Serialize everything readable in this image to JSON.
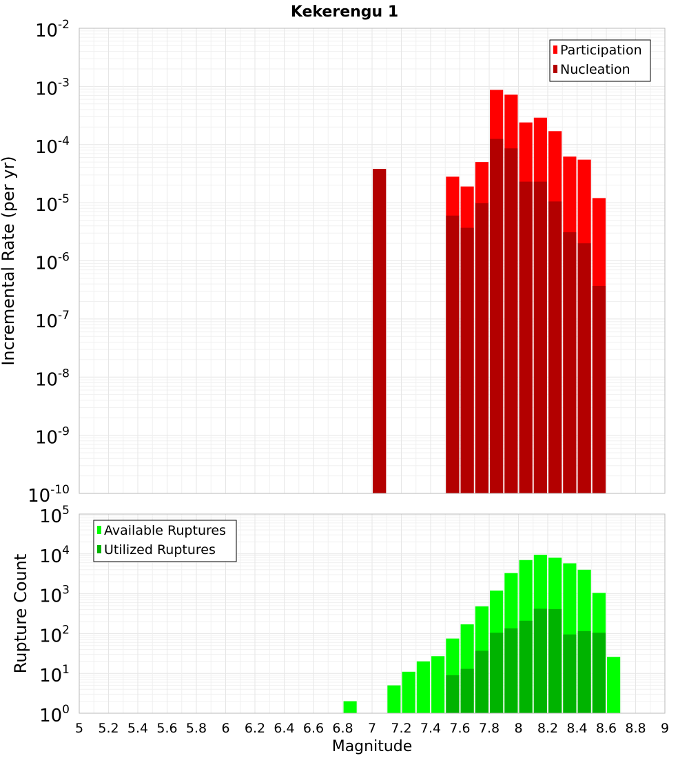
{
  "chart_data": [
    {
      "type": "bar",
      "title": "Kekerengu 1",
      "xlabel": "",
      "ylabel": "Incremental Rate (per yr)",
      "yscale": "log",
      "ylim_exp": [
        -10,
        -2
      ],
      "xlim": [
        5,
        9
      ],
      "x_tick_labels": [],
      "legend_position": "top-right",
      "grid": true,
      "bar_width": 0.09,
      "series": [
        {
          "name": "Participation",
          "color": "#ff0000",
          "x": [
            7.05,
            7.55,
            7.65,
            7.75,
            7.85,
            7.95,
            8.05,
            8.15,
            8.25,
            8.35,
            8.45,
            8.55
          ],
          "values": [
            3.8e-05,
            2.8e-05,
            1.9e-05,
            5e-05,
            0.00087,
            0.00072,
            0.00024,
            0.00029,
            0.00017,
            6.2e-05,
            5.5e-05,
            1.2e-05
          ]
        },
        {
          "name": "Nucleation",
          "color": "#b30000",
          "x": [
            7.05,
            7.55,
            7.65,
            7.75,
            7.85,
            7.95,
            8.05,
            8.15,
            8.25,
            8.35,
            8.45,
            8.55
          ],
          "values": [
            3.8e-05,
            6e-06,
            3.7e-06,
            9.8e-06,
            0.000125,
            8.6e-05,
            2.3e-05,
            2.3e-05,
            1.05e-05,
            3.1e-06,
            2e-06,
            3.7e-07
          ]
        }
      ]
    },
    {
      "type": "bar",
      "title": "",
      "xlabel": "Magnitude",
      "ylabel": "Rupture Count",
      "yscale": "log",
      "ylim_exp": [
        0,
        5
      ],
      "xlim": [
        5,
        9
      ],
      "x_tick_labels": [
        "5",
        "5.2",
        "5.4",
        "5.6",
        "5.8",
        "6",
        "6.2",
        "6.4",
        "6.6",
        "6.8",
        "7",
        "7.2",
        "7.4",
        "7.6",
        "7.8",
        "8",
        "8.2",
        "8.4",
        "8.6",
        "8.8",
        "9"
      ],
      "legend_position": "top-left",
      "grid": true,
      "bar_width": 0.09,
      "series": [
        {
          "name": "Available Ruptures",
          "color": "#00ff00",
          "x": [
            6.85,
            7.05,
            7.15,
            7.25,
            7.35,
            7.45,
            7.55,
            7.65,
            7.75,
            7.85,
            7.95,
            8.05,
            8.15,
            8.25,
            8.35,
            8.45,
            8.55,
            8.65
          ],
          "values": [
            2,
            1,
            5,
            11,
            20,
            27,
            75,
            170,
            480,
            1200,
            3300,
            7000,
            9500,
            8000,
            5800,
            4000,
            1050,
            26
          ]
        },
        {
          "name": "Utilized Ruptures",
          "color": "#00b300",
          "x": [
            7.05,
            7.35,
            7.55,
            7.65,
            7.75,
            7.85,
            7.95,
            8.05,
            8.15,
            8.25,
            8.35,
            8.45,
            8.55
          ],
          "values": [
            1,
            1,
            9,
            13,
            37,
            105,
            135,
            210,
            420,
            410,
            95,
            115,
            105
          ]
        }
      ]
    }
  ]
}
